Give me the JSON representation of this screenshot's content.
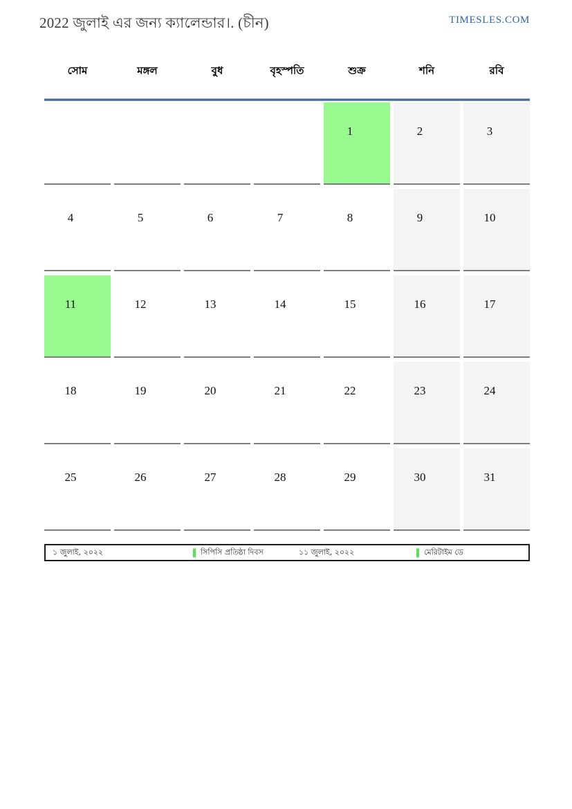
{
  "header": {
    "title": "2022 জুলাই এর জন্য ক্যালেন্ডার।. (চীন)",
    "site": "TIMESLES.COM"
  },
  "calendar": {
    "day_headers": [
      "সোম",
      "মঙ্গল",
      "বুধ",
      "বৃহস্পতি",
      "শুক্র",
      "শনি",
      "রবি"
    ],
    "weeks": [
      [
        "",
        "",
        "",
        "",
        "1",
        "2",
        "3"
      ],
      [
        "4",
        "5",
        "6",
        "7",
        "8",
        "9",
        "10"
      ],
      [
        "11",
        "12",
        "13",
        "14",
        "15",
        "16",
        "17"
      ],
      [
        "18",
        "19",
        "20",
        "21",
        "22",
        "23",
        "24"
      ],
      [
        "25",
        "26",
        "27",
        "28",
        "29",
        "30",
        "31"
      ]
    ],
    "highlighted_days": [
      "1",
      "11"
    ],
    "weekend_columns": [
      "শনি",
      "রবি"
    ],
    "colors": {
      "holiday_green": "#98f98e",
      "weekend_gray": "#f4f4f4",
      "header_line_blue": "#4a6b96",
      "cell_border_gray": "#7e7e7e"
    }
  },
  "legend": {
    "swatch_color": "#5be05b",
    "entries": [
      {
        "date": "১ জুলাই, ২০২২",
        "label": "সিপিসি প্রতিষ্ঠা দিবস"
      },
      {
        "date": "১১ জুলাই, ২০২২",
        "label": "মেরিটাইম ডে"
      }
    ]
  }
}
